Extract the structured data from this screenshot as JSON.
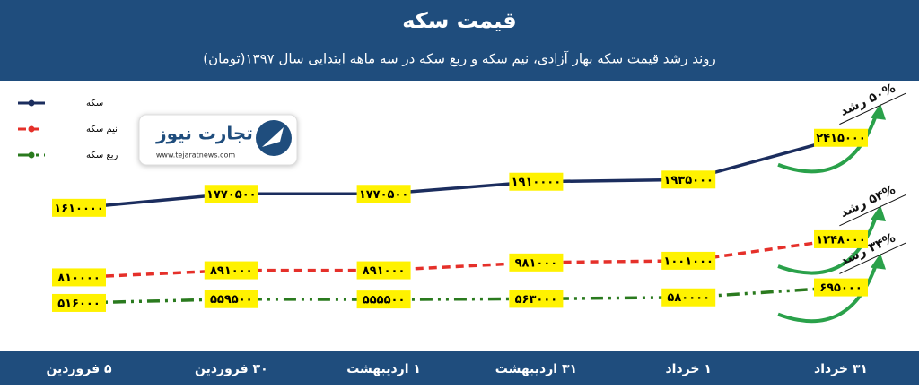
{
  "chart_data": {
    "type": "line",
    "title": "قیمت سکه",
    "subtitle": "روند رشد قیمت سکه بهار آزادی، نیم سکه و ربع سکه در سه ماهه ابتدایی سال ۱۳۹۷(تومان)",
    "brand": "تجارت نیوز",
    "brand_url": "www.tejaratnews.com",
    "categories": [
      "۵ فروردین",
      "۳۰ فروردین",
      "۱ اردیبهشت",
      "۳۱ اردیبهشت",
      "۱ خرداد",
      "۳۱ خرداد"
    ],
    "series": [
      {
        "name": "سکه",
        "color": "#1b2d5e",
        "dash": "solid",
        "values": [
          1610000,
          1770500,
          1770500,
          1910000,
          1935000,
          2415000
        ],
        "value_labels": [
          "۱۶۱۰۰۰۰",
          "۱۷۷۰۵۰۰",
          "۱۷۷۰۵۰۰",
          "۱۹۱۰۰۰۰",
          "۱۹۳۵۰۰۰",
          "۲۴۱۵۰۰۰"
        ]
      },
      {
        "name": "نیم سکه",
        "color": "#e5302a",
        "dash": "dashed",
        "values": [
          810000,
          891000,
          891000,
          981000,
          1001000,
          1248000
        ],
        "value_labels": [
          "۸۱۰۰۰۰",
          "۸۹۱۰۰۰",
          "۸۹۱۰۰۰",
          "۹۸۱۰۰۰",
          "۱۰۰۱۰۰۰",
          "۱۲۴۸۰۰۰"
        ]
      },
      {
        "name": "ربع سکه",
        "color": "#2a7a1e",
        "dash": "dashdot",
        "values": [
          516000,
          559500,
          555500,
          563000,
          580000,
          695000
        ],
        "value_labels": [
          "۵۱۶۰۰۰",
          "۵۵۹۵۰۰",
          "۵۵۵۵۰۰",
          "۵۶۳۰۰۰",
          "۵۸۰۰۰۰",
          "۶۹۵۰۰۰"
        ]
      }
    ],
    "annotations": [
      "۵۰% رشد",
      "۵۴% رشد",
      "۳۴% رشد"
    ],
    "ylim": [
      0,
      3000000
    ],
    "legend": "top-left"
  }
}
